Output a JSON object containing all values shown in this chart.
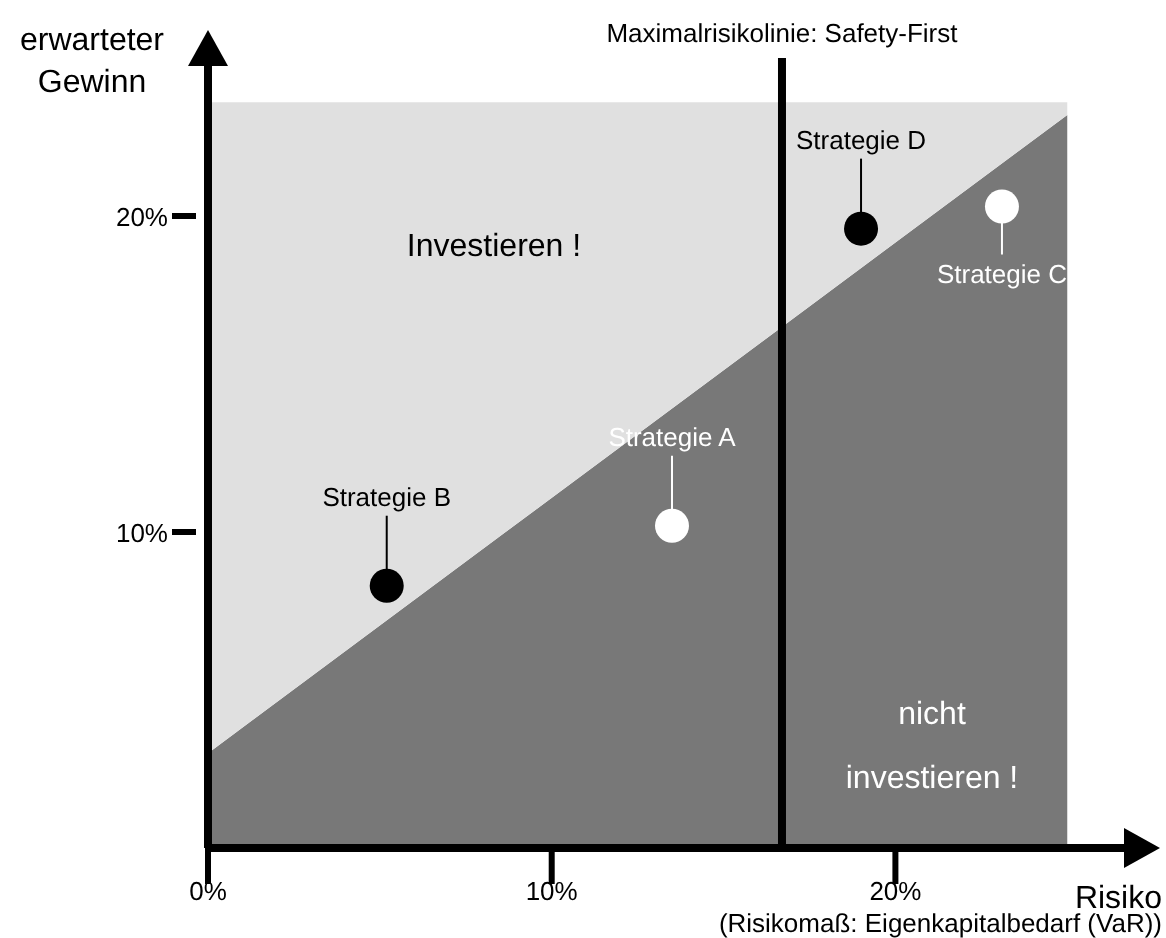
{
  "chart_data": {
    "type": "scatter",
    "xlabel": "Risiko",
    "ylabel": "erwarteter Gewinn",
    "xlim": [
      0,
      27
    ],
    "ylim": [
      0,
      25
    ],
    "xticks": [
      {
        "value": 0,
        "label": "0%"
      },
      {
        "value": 10,
        "label": "10%"
      },
      {
        "value": 20,
        "label": "20%"
      }
    ],
    "yticks": [
      {
        "value": 10,
        "label": "10%"
      },
      {
        "value": 20,
        "label": "20%"
      }
    ],
    "grid": false,
    "stacked": true,
    "series": [
      {
        "type": "area",
        "color": "#787878",
        "x": [
          0,
          25
        ],
        "values": [
          3.0,
          23.2
        ]
      },
      {
        "type": "area",
        "color": "#e0e0e0",
        "x": [
          0,
          25
        ],
        "values": [
          20.6,
          0.4
        ]
      },
      {
        "x": [
          5.2,
          13.5,
          19.0,
          23.1
        ],
        "values": [
          8.3,
          10.2,
          19.6,
          20.3
        ],
        "colors": [
          "#000000",
          "#ffffff",
          "#000000",
          "#ffffff"
        ],
        "value_labels": [
          "Strategie B",
          "Strategie A",
          "Strategie D",
          "Strategie C"
        ]
      }
    ],
    "ref_lines": [
      {
        "axis": "x",
        "value": 16.7,
        "label": "Maximalrisikolinie: Safety-First",
        "color": "#000000"
      }
    ],
    "annotations": [
      "Investieren !",
      "nicht investieren !",
      "(Risikomaß: Eigenkapitalbedarf (VaR))"
    ]
  }
}
